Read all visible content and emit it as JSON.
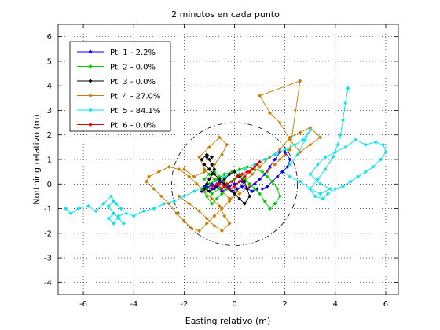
{
  "chart_data": {
    "type": "line",
    "title": "2 minutos en cada punto",
    "xlabel": "Easting relativo (m)",
    "ylabel": "Northing relativo (m)",
    "xlim": [
      -7,
      6.5
    ],
    "ylim": [
      -4.5,
      6.5
    ],
    "xticks": [
      -6,
      -4,
      -2,
      0,
      2,
      4,
      6
    ],
    "yticks": [
      -4,
      -3,
      -2,
      -1,
      0,
      1,
      2,
      3,
      4,
      5,
      6
    ],
    "grid": "dotted",
    "legend_placement": "top-left",
    "reference_circle": {
      "center": [
        0,
        0
      ],
      "radius": 2.5,
      "style": "dash-dot"
    },
    "series": [
      {
        "name": "Pt. 1 - 2.2%",
        "color": "#0000ff",
        "x": [
          -1.2,
          -1.0,
          -0.8,
          -0.6,
          -0.4,
          -0.2,
          0.0,
          0.3,
          0.5,
          0.8,
          1.0,
          1.2,
          1.4,
          1.6,
          1.8,
          2.0,
          2.2,
          2.1,
          1.9,
          1.7,
          1.5,
          1.3,
          1.1,
          0.9,
          0.7,
          0.5,
          0.3,
          0.1,
          -0.1,
          -0.3,
          -0.5,
          -0.7,
          -0.9,
          -1.1,
          -1.3,
          -1.1,
          -0.9,
          -0.7
        ],
        "y": [
          -0.1,
          0.0,
          -0.1,
          0.1,
          0.0,
          -0.1,
          0.0,
          0.1,
          -0.2,
          0.0,
          0.2,
          0.4,
          0.7,
          1.0,
          1.3,
          1.3,
          1.0,
          0.7,
          0.5,
          0.3,
          0.1,
          -0.1,
          -0.2,
          -0.2,
          -0.3,
          -0.2,
          -0.1,
          -0.2,
          -0.3,
          -0.2,
          -0.3,
          -0.1,
          0.0,
          -0.2,
          -0.3,
          -0.1,
          -0.2,
          -0.1
        ]
      },
      {
        "name": "Pt. 2 - 0.0%",
        "color": "#00cc00",
        "x": [
          -1.2,
          -1.0,
          -0.8,
          -0.6,
          -0.4,
          -0.3,
          -0.5,
          -0.7,
          -0.9,
          -1.1,
          -1.3,
          -1.0,
          -0.7,
          -0.4,
          -0.1,
          0.2,
          0.5,
          0.8,
          1.1,
          1.3,
          1.5,
          1.7,
          1.8,
          1.6,
          1.4,
          1.2,
          1.0,
          0.8,
          0.6,
          0.4,
          0.2,
          0.0,
          -0.3,
          -0.6,
          -0.9,
          -1.1
        ],
        "y": [
          0.2,
          0.4,
          0.5,
          0.3,
          0.1,
          -0.2,
          -0.4,
          -0.6,
          -0.8,
          -0.5,
          -0.2,
          0.0,
          0.2,
          0.4,
          0.5,
          0.6,
          0.7,
          0.6,
          0.5,
          0.3,
          0.1,
          -0.2,
          -0.5,
          -0.8,
          -1.0,
          -0.7,
          -0.4,
          -0.2,
          0.0,
          0.2,
          0.4,
          0.2,
          0.0,
          -0.2,
          -0.4,
          -0.2
        ]
      },
      {
        "name": "Pt. 3 - 0.0%",
        "color": "#000000",
        "x": [
          -1.1,
          -1.0,
          -0.9,
          -0.8,
          -0.9,
          -1.0,
          -1.1,
          -1.2,
          -1.0,
          -0.8,
          -0.6,
          -0.4,
          -0.2,
          0.0,
          0.2,
          0.4,
          0.5,
          0.6,
          0.4,
          0.2,
          0.0,
          -0.2,
          -0.4,
          -0.6,
          -0.8,
          -1.0,
          -1.2,
          -1.3,
          -1.1,
          -0.9
        ],
        "y": [
          1.1,
          1.0,
          0.8,
          0.6,
          0.4,
          0.2,
          0.0,
          -0.2,
          -0.3,
          -0.2,
          0.0,
          0.2,
          0.4,
          0.5,
          0.3,
          0.1,
          -0.2,
          -0.5,
          -0.8,
          -0.6,
          -0.4,
          -0.2,
          0.0,
          0.2,
          0.4,
          0.6,
          0.8,
          1.0,
          1.2,
          1.1
        ]
      },
      {
        "name": "Pt. 4 - 27.0%",
        "color": "#cc7a00",
        "x": [
          -2.0,
          -1.6,
          -1.2,
          -0.8,
          -0.5,
          -0.3,
          -0.6,
          -1.0,
          -1.4,
          -1.2,
          -0.8,
          -0.5,
          -0.2,
          0.2,
          0.6,
          1.0,
          1.3,
          1.6,
          1.8,
          2.0,
          2.2,
          2.6,
          1.0,
          1.4,
          1.8,
          2.2,
          2.6,
          3.0,
          3.4,
          3.0,
          2.6,
          2.2,
          1.8,
          1.4,
          1.0,
          0.7,
          0.4,
          0.1,
          -0.2,
          -0.5,
          -0.8,
          -1.1,
          -1.4,
          -1.7,
          -2.0,
          -2.3,
          -2.6,
          -2.9,
          -3.2,
          -3.5,
          -3.4,
          -3.0,
          -2.6,
          -2.2,
          -1.8,
          -1.5,
          -1.2,
          -0.9,
          -0.6,
          -0.4,
          -0.2,
          -0.5,
          -0.8,
          -1.1,
          -1.4,
          -1.8,
          -2.2
        ],
        "y": [
          0.6,
          0.3,
          0.5,
          0.8,
          1.2,
          1.6,
          1.9,
          1.5,
          1.1,
          0.6,
          0.2,
          -0.3,
          -0.6,
          -0.4,
          -0.1,
          0.2,
          0.5,
          0.8,
          1.0,
          1.2,
          1.4,
          4.2,
          3.6,
          2.9,
          2.5,
          1.8,
          1.3,
          1.6,
          1.9,
          2.3,
          2.1,
          1.9,
          1.4,
          1.1,
          0.7,
          0.4,
          0.1,
          -0.3,
          -0.7,
          -1.0,
          -1.3,
          -1.6,
          -1.9,
          -1.8,
          -1.5,
          -1.2,
          -0.8,
          -0.5,
          -0.2,
          0.1,
          0.3,
          0.5,
          0.7,
          0.6,
          0.3,
          0.0,
          -0.3,
          -0.6,
          -0.9,
          -1.3,
          -1.6,
          -1.9,
          -1.7,
          -1.4,
          -1.1,
          -0.8,
          -0.5
        ]
      },
      {
        "name": "Pt. 5 - 84.1%",
        "color": "#00e5ee",
        "x": [
          -6.7,
          -6.5,
          -6.2,
          -5.8,
          -5.5,
          -5.2,
          -4.9,
          -4.7,
          -4.5,
          -4.8,
          -5.0,
          -4.8,
          -4.6,
          -4.4,
          -4.6,
          -4.8,
          -5.0,
          -4.8,
          -4.6,
          -4.3,
          -4.0,
          -3.6,
          -3.2,
          -2.8,
          -2.4,
          -2.0,
          -1.6,
          -1.2,
          -0.8,
          -0.4,
          0.0,
          0.4,
          0.8,
          1.2,
          1.6,
          2.0,
          2.4,
          2.7,
          3.0,
          2.8,
          2.5,
          2.2,
          1.9,
          2.2,
          2.6,
          3.0,
          3.4,
          3.8,
          3.4,
          3.0,
          3.3,
          3.6,
          4.0,
          4.4,
          4.8,
          5.2,
          5.6,
          5.9,
          6.0,
          5.8,
          5.5,
          5.2,
          4.9,
          4.6,
          4.3,
          4.0,
          3.7,
          3.5,
          3.2,
          3.0,
          3.3,
          3.6,
          3.9,
          4.1,
          4.2,
          4.3,
          4.4,
          4.5
        ],
        "y": [
          -1.0,
          -1.2,
          -1.0,
          -0.9,
          -1.1,
          -0.8,
          -0.5,
          -0.8,
          -1.0,
          -0.7,
          -0.9,
          -1.2,
          -1.4,
          -1.6,
          -1.4,
          -1.2,
          -1.4,
          -1.6,
          -1.3,
          -1.2,
          -1.3,
          -1.1,
          -1.0,
          -0.8,
          -0.7,
          -0.5,
          -0.3,
          -0.1,
          0.1,
          0.3,
          0.5,
          0.6,
          0.8,
          1.0,
          1.2,
          1.4,
          1.6,
          1.8,
          2.2,
          1.8,
          1.2,
          0.8,
          0.5,
          0.3,
          0.1,
          -0.2,
          -0.4,
          -0.2,
          0.0,
          0.4,
          0.8,
          1.1,
          1.3,
          1.5,
          1.8,
          1.6,
          1.7,
          1.6,
          1.3,
          1.0,
          0.7,
          0.5,
          0.3,
          0.1,
          -0.1,
          -0.2,
          -0.4,
          -0.6,
          -0.5,
          -0.2,
          0.2,
          0.6,
          1.1,
          1.6,
          2.0,
          2.6,
          3.3,
          3.9
        ]
      },
      {
        "name": "Pt. 6 - 0.0%",
        "color": "#ee0000",
        "x": [
          -0.9,
          -0.7,
          -0.5,
          -0.3,
          -0.1,
          0.1,
          0.3,
          0.5,
          0.7,
          0.9,
          1.0,
          0.8,
          0.6,
          0.4,
          0.2,
          0.0,
          -0.2,
          -0.4,
          -0.6
        ],
        "y": [
          -0.1,
          0.0,
          -0.2,
          0.0,
          0.1,
          0.3,
          0.4,
          0.5,
          0.6,
          0.8,
          0.9,
          0.7,
          0.5,
          0.3,
          0.1,
          -0.1,
          -0.2,
          -0.1,
          0.0
        ]
      }
    ]
  }
}
